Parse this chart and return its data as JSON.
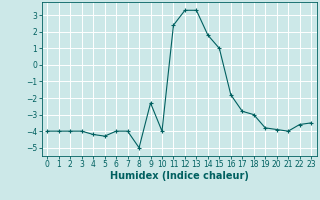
{
  "x": [
    0,
    1,
    2,
    3,
    4,
    5,
    6,
    7,
    8,
    9,
    10,
    11,
    12,
    13,
    14,
    15,
    16,
    17,
    18,
    19,
    20,
    21,
    22,
    23
  ],
  "y": [
    -4.0,
    -4.0,
    -4.0,
    -4.0,
    -4.2,
    -4.3,
    -4.0,
    -4.0,
    -5.0,
    -2.3,
    -4.0,
    2.4,
    3.3,
    3.3,
    1.8,
    1.0,
    -1.8,
    -2.8,
    -3.0,
    -3.8,
    -3.9,
    -4.0,
    -3.6,
    -3.5
  ],
  "line_color": "#006060",
  "marker": "+",
  "background_color": "#cce8e8",
  "grid_color": "#ffffff",
  "xlabel": "Humidex (Indice chaleur)",
  "ylim": [
    -5.5,
    3.8
  ],
  "xlim": [
    -0.5,
    23.5
  ],
  "yticks": [
    -5,
    -4,
    -3,
    -2,
    -1,
    0,
    1,
    2,
    3
  ],
  "xtick_labels": [
    "0",
    "1",
    "2",
    "3",
    "4",
    "5",
    "6",
    "7",
    "8",
    "9",
    "10",
    "11",
    "12",
    "13",
    "14",
    "15",
    "16",
    "17",
    "18",
    "19",
    "20",
    "21",
    "22",
    "23"
  ],
  "tick_fontsize": 5.5,
  "xlabel_fontsize": 7,
  "linewidth": 0.8,
  "markersize": 3,
  "markeredgewidth": 0.8
}
